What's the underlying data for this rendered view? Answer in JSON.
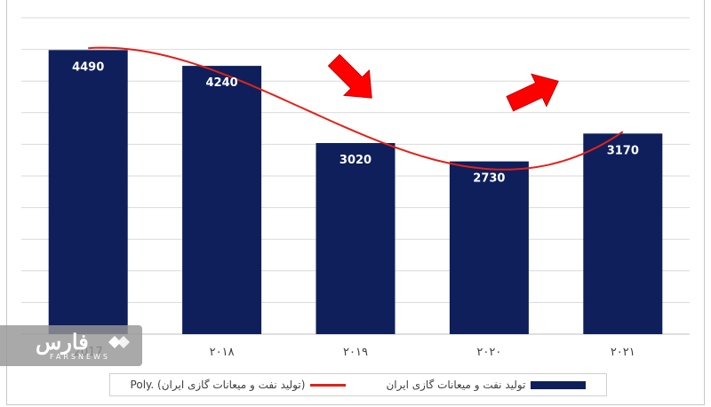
{
  "chart_data": {
    "type": "bar",
    "categories": [
      "2017",
      "۲۰۱۸",
      "۲۰۱۹",
      "۲۰۲۰",
      "۲۰۲۱"
    ],
    "values": [
      4490,
      4240,
      3020,
      2730,
      3170
    ],
    "data_labels": [
      "4490",
      "4240",
      "3020",
      "2730",
      "3170"
    ],
    "ylim": [
      0,
      5000
    ],
    "grid": true,
    "trendline": {
      "type": "polynomial",
      "name": "Poly. (تولید نفت و میعانات گازی ایران)",
      "color": "#e32119"
    },
    "bar_color": "#0e1f5b",
    "legend_position": "bottom",
    "annotations": [
      {
        "type": "arrow",
        "direction": "down-right",
        "color": "#ff0000"
      },
      {
        "type": "arrow",
        "direction": "up-right",
        "color": "#ff0000"
      }
    ]
  },
  "legend": {
    "bar_label": "تولید نفت و میعانات گازی ایران",
    "line_label": "Poly. (تولید نفت و میعانات گازی ایران)"
  },
  "watermark": {
    "logo_text": "فارس",
    "sub_text": "FARSNEWS"
  }
}
